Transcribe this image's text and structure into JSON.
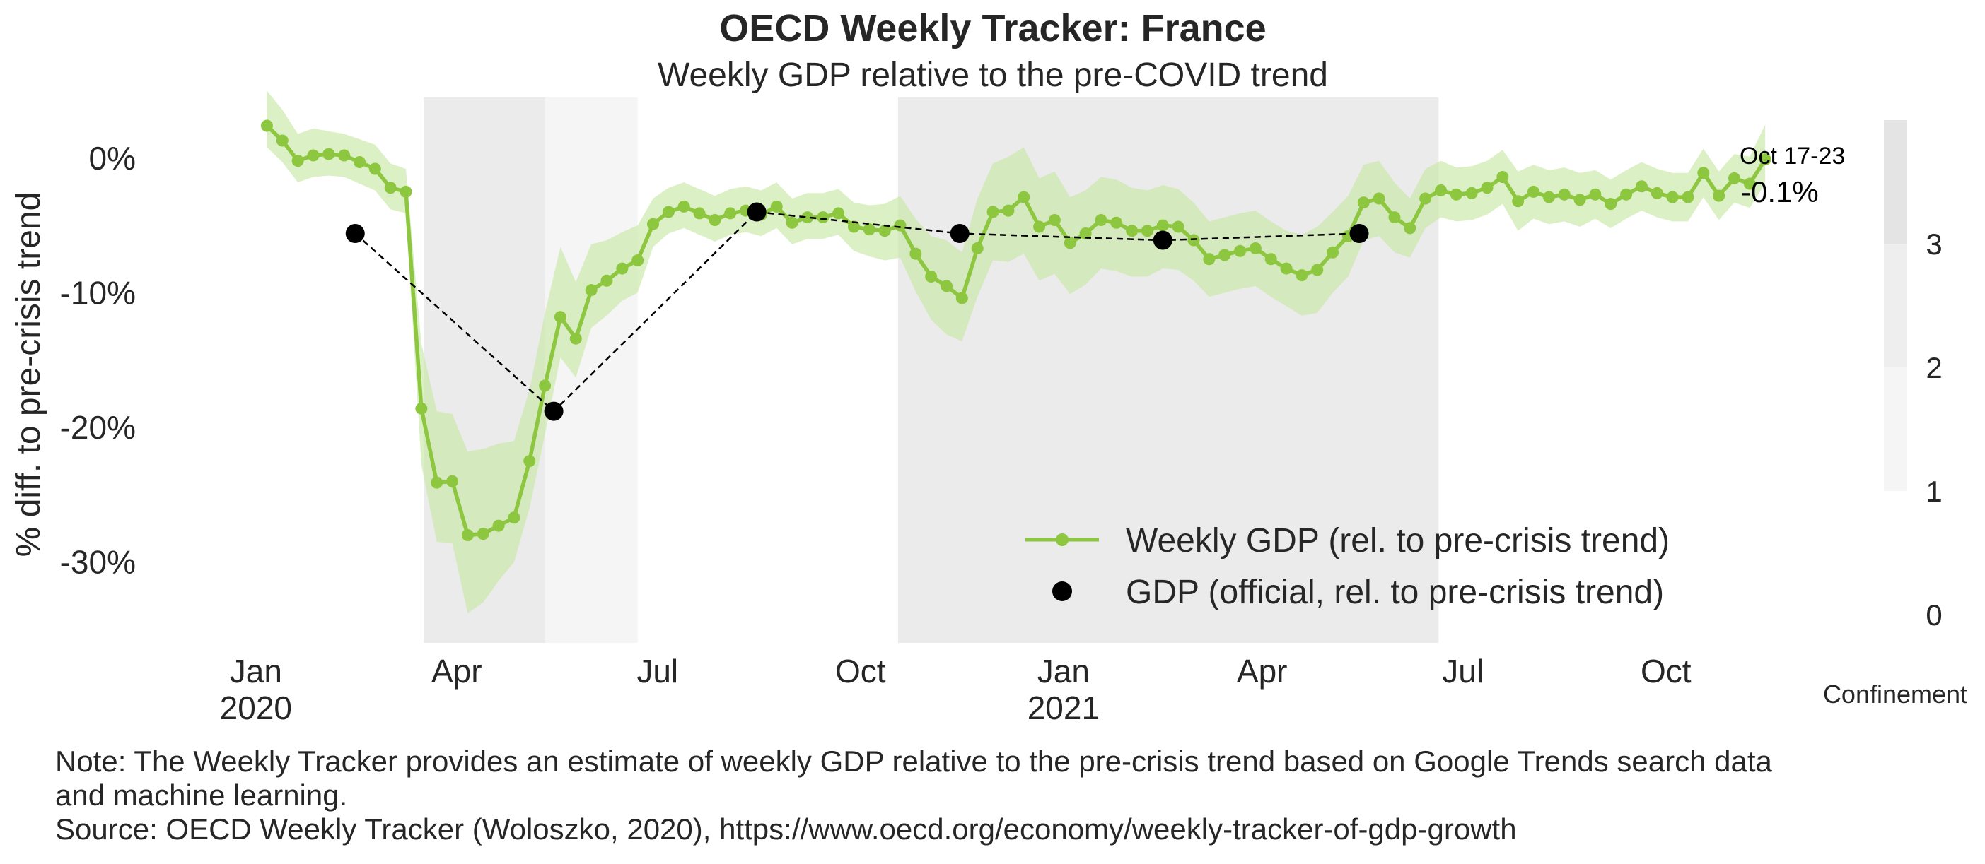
{
  "chart_data": {
    "type": "line",
    "title": "OECD Weekly Tracker: France",
    "subtitle": "Weekly GDP relative to the pre-COVID trend",
    "ylabel": "% diff. to pre-crisis trend",
    "xlabel": "",
    "ylim": [
      -36,
      4.5
    ],
    "yticks": [
      0,
      -10,
      -20,
      -30
    ],
    "ytick_labels": [
      "0%",
      "-10%",
      "-20%",
      "-30%"
    ],
    "x_start": "2020-01-06",
    "x_range": [
      "2019-12-25",
      "2021-10-28"
    ],
    "x_ticks": [
      {
        "date": "2020-01-01",
        "label": "Jan",
        "sub": "2020"
      },
      {
        "date": "2020-04-01",
        "label": "Apr",
        "sub": ""
      },
      {
        "date": "2020-07-01",
        "label": "Jul",
        "sub": ""
      },
      {
        "date": "2020-10-01",
        "label": "Oct",
        "sub": ""
      },
      {
        "date": "2021-01-01",
        "label": "Jan",
        "sub": "2021"
      },
      {
        "date": "2021-04-01",
        "label": "Apr",
        "sub": ""
      },
      {
        "date": "2021-07-01",
        "label": "Jul",
        "sub": ""
      },
      {
        "date": "2021-10-01",
        "label": "Oct",
        "sub": ""
      }
    ],
    "grid": false,
    "series": [
      {
        "name": "Weekly GDP (rel. to pre-crisis trend)",
        "color": "#8dc63f",
        "band_color": "#c9e8a6",
        "marker": "circle",
        "values": [
          2.4,
          1.3,
          -0.2,
          0.2,
          0.3,
          0.2,
          -0.3,
          -0.8,
          -2.2,
          -2.5,
          -18.6,
          -24.1,
          -24.0,
          -28.0,
          -27.9,
          -27.3,
          -26.7,
          -22.5,
          -16.9,
          -11.8,
          -13.4,
          -9.8,
          -9.1,
          -8.2,
          -7.6,
          -4.9,
          -4.0,
          -3.6,
          -4.1,
          -4.6,
          -4.1,
          -3.9,
          -4.2,
          -3.6,
          -4.8,
          -4.4,
          -4.4,
          -4.1,
          -5.1,
          -5.3,
          -5.4,
          -5.0,
          -7.1,
          -8.8,
          -9.5,
          -10.4,
          -6.7,
          -4.0,
          -3.9,
          -2.9,
          -5.1,
          -4.6,
          -6.3,
          -5.6,
          -4.6,
          -4.8,
          -5.4,
          -5.4,
          -5.0,
          -5.1,
          -6.1,
          -7.5,
          -7.2,
          -6.9,
          -6.7,
          -7.5,
          -8.2,
          -8.7,
          -8.3,
          -7.0,
          -5.8,
          -3.3,
          -3.0,
          -4.4,
          -5.2,
          -3.0,
          -2.4,
          -2.7,
          -2.6,
          -2.2,
          -1.4,
          -3.2,
          -2.5,
          -2.9,
          -2.7,
          -3.1,
          -2.7,
          -3.4,
          -2.7,
          -2.1,
          -2.6,
          -2.9,
          -2.9,
          -1.1,
          -2.8,
          -1.5,
          -1.9,
          -0.1
        ],
        "lower": [
          0.8,
          -0.3,
          -1.8,
          -1.4,
          -1.3,
          -1.4,
          -1.9,
          -2.4,
          -3.8,
          -4.1,
          -22.8,
          -28.5,
          -28.6,
          -33.8,
          -33.0,
          -31.4,
          -30.0,
          -26.0,
          -20.5,
          -14.8,
          -16.3,
          -12.6,
          -11.7,
          -10.6,
          -10.0,
          -6.6,
          -5.6,
          -5.2,
          -5.7,
          -6.2,
          -5.7,
          -5.5,
          -5.8,
          -5.2,
          -6.4,
          -6.0,
          -6.0,
          -5.7,
          -6.9,
          -7.3,
          -7.6,
          -7.4,
          -9.9,
          -12.0,
          -13.1,
          -13.6,
          -10.3,
          -7.6,
          -7.7,
          -7.1,
          -9.1,
          -8.6,
          -10.1,
          -9.4,
          -8.2,
          -8.4,
          -8.8,
          -8.8,
          -8.2,
          -8.3,
          -9.1,
          -10.3,
          -10.0,
          -9.7,
          -9.5,
          -10.3,
          -11.0,
          -11.7,
          -11.5,
          -10.0,
          -8.8,
          -6.1,
          -5.8,
          -7.0,
          -7.4,
          -5.2,
          -4.4,
          -4.7,
          -4.6,
          -4.2,
          -3.4,
          -5.4,
          -4.5,
          -4.9,
          -4.7,
          -5.1,
          -4.5,
          -5.2,
          -4.5,
          -3.9,
          -4.4,
          -4.7,
          -4.7,
          -2.9,
          -4.6,
          -3.3,
          -3.7,
          -1.9
        ],
        "upper": [
          5.0,
          3.6,
          1.8,
          2.2,
          2.0,
          1.8,
          1.4,
          1.0,
          -0.4,
          -0.8,
          -13.8,
          -18.8,
          -19.0,
          -21.8,
          -21.6,
          -21.2,
          -21.0,
          -17.2,
          -11.5,
          -6.6,
          -9.2,
          -6.4,
          -6.1,
          -5.5,
          -5.0,
          -3.0,
          -2.2,
          -1.8,
          -2.3,
          -2.8,
          -2.3,
          -2.1,
          -2.4,
          -1.8,
          -3.0,
          -2.6,
          -2.6,
          -2.3,
          -3.3,
          -3.5,
          -3.4,
          -2.8,
          -4.5,
          -5.8,
          -6.1,
          -7.0,
          -3.0,
          -0.4,
          0.1,
          0.8,
          -1.5,
          -1.0,
          -2.9,
          -2.4,
          -1.4,
          -1.6,
          -2.2,
          -2.4,
          -2.0,
          -2.3,
          -3.3,
          -4.7,
          -4.4,
          -4.1,
          -3.9,
          -4.7,
          -5.4,
          -5.7,
          -5.1,
          -4.0,
          -2.8,
          -0.5,
          -0.2,
          -1.8,
          -3.0,
          -0.8,
          -0.2,
          -0.7,
          -0.6,
          -0.2,
          0.6,
          -1.0,
          -0.5,
          -0.9,
          -0.7,
          -1.1,
          -0.9,
          -1.6,
          -0.9,
          -0.3,
          -0.8,
          -1.1,
          -1.1,
          0.7,
          -1.0,
          0.3,
          0.1,
          2.5
        ]
      },
      {
        "name": "GDP (official, rel. to pre-crisis trend)",
        "color": "#000000",
        "marker": "circle",
        "line": "dashed",
        "points": [
          {
            "x": "2020-02-15",
            "y": -5.6
          },
          {
            "x": "2020-05-15",
            "y": -18.8
          },
          {
            "x": "2020-08-15",
            "y": -4.0
          },
          {
            "x": "2020-11-15",
            "y": -5.6
          },
          {
            "x": "2021-02-15",
            "y": -6.1
          },
          {
            "x": "2021-05-15",
            "y": -5.6
          }
        ]
      }
    ],
    "confinement": {
      "label": "Confinement",
      "cb_ticks": [
        "0",
        "1",
        "2",
        "3"
      ],
      "cb_range": [
        0,
        4
      ],
      "cb_colors": [
        "#ffffff",
        "#f5f5f5",
        "#eeeeee",
        "#e4e4e4"
      ],
      "periods": [
        {
          "start": "2020-03-17",
          "end": "2020-05-11",
          "level": 3,
          "color": "#ebebeb"
        },
        {
          "start": "2020-05-11",
          "end": "2020-06-22",
          "level": 1,
          "color": "#f5f5f5"
        },
        {
          "start": "2020-10-18",
          "end": "2021-06-20",
          "level": 3,
          "color": "#ebebeb"
        }
      ]
    },
    "annotation": {
      "date_label": "Oct 17-23",
      "value_label": "-0.1%"
    },
    "legend_placement": "bottom-right"
  },
  "note": {
    "line1": "Note: The Weekly Tracker provides an estimate of weekly GDP relative to the pre-crisis trend based on Google Trends search data and machine learning.",
    "line2": "Source: OECD Weekly Tracker (Woloszko, 2020), https://www.oecd.org/economy/weekly-tracker-of-gdp-growth"
  }
}
